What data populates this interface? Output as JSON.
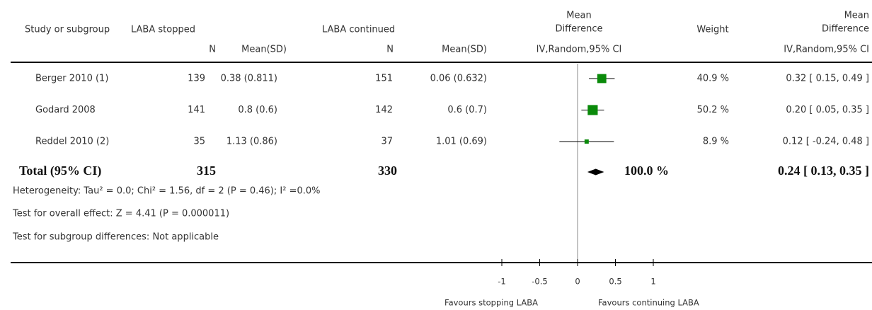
{
  "chart_data": {
    "type": "forest",
    "headers": {
      "study": "Study or subgroup",
      "group1": "LABA stopped",
      "group2": "LABA continued",
      "plot": [
        "Mean",
        "Difference"
      ],
      "weight": "Weight",
      "effect": [
        "Mean",
        "Difference"
      ],
      "n1": "N",
      "mean_sd1": "Mean(SD)",
      "n2": "N",
      "mean_sd2": "Mean(SD)",
      "plot_method": "IV,Random,95% CI",
      "effect_method": "IV,Random,95% CI"
    },
    "studies": [
      {
        "name": "Berger 2010 (1)",
        "n1": 139,
        "mean_sd1": "0.38 (0.811)",
        "n2": 151,
        "mean_sd2": "0.06 (0.632)",
        "weight": {
          "value": 40.9,
          "label": "40.9 %"
        },
        "md": 0.32,
        "ci": [
          0.15,
          0.49
        ],
        "md_label": "0.32 [ 0.15, 0.49 ]"
      },
      {
        "name": "Godard 2008",
        "n1": 141,
        "mean_sd1": "0.8 (0.6)",
        "n2": 142,
        "mean_sd2": "0.6 (0.7)",
        "weight": {
          "value": 50.2,
          "label": "50.2 %"
        },
        "md": 0.2,
        "ci": [
          0.05,
          0.35
        ],
        "md_label": "0.20 [ 0.05, 0.35 ]"
      },
      {
        "name": "Reddel 2010 (2)",
        "n1": 35,
        "mean_sd1": "1.13 (0.86)",
        "n2": 37,
        "mean_sd2": "1.01 (0.69)",
        "weight": {
          "value": 8.9,
          "label": "8.9 %"
        },
        "md": 0.12,
        "ci": [
          -0.24,
          0.48
        ],
        "md_label": "0.12 [ -0.24, 0.48 ]"
      }
    ],
    "total": {
      "name": "Total (95% CI)",
      "n1": 315,
      "n2": 330,
      "weight": {
        "value": 100.0,
        "label": "100.0 %"
      },
      "md": 0.24,
      "ci": [
        0.13,
        0.35
      ],
      "md_label": "0.24 [ 0.13, 0.35 ]"
    },
    "heterogeneity": "Heterogeneity: Tau² = 0.0; Chi² = 1.56, df = 2 (P = 0.46); I² =0.0%",
    "overall_effect": "Test for overall effect: Z = 4.41 (P = 0.000011)",
    "subgroup_differences": "Test for subgroup differences: Not applicable",
    "xlim": [
      -1,
      1
    ],
    "xticks": [
      -1,
      -0.5,
      0,
      0.5,
      1
    ],
    "favours_left": "Favours stopping LABA",
    "favours_right": "Favours continuing LABA",
    "color": "#0a8a0a"
  }
}
